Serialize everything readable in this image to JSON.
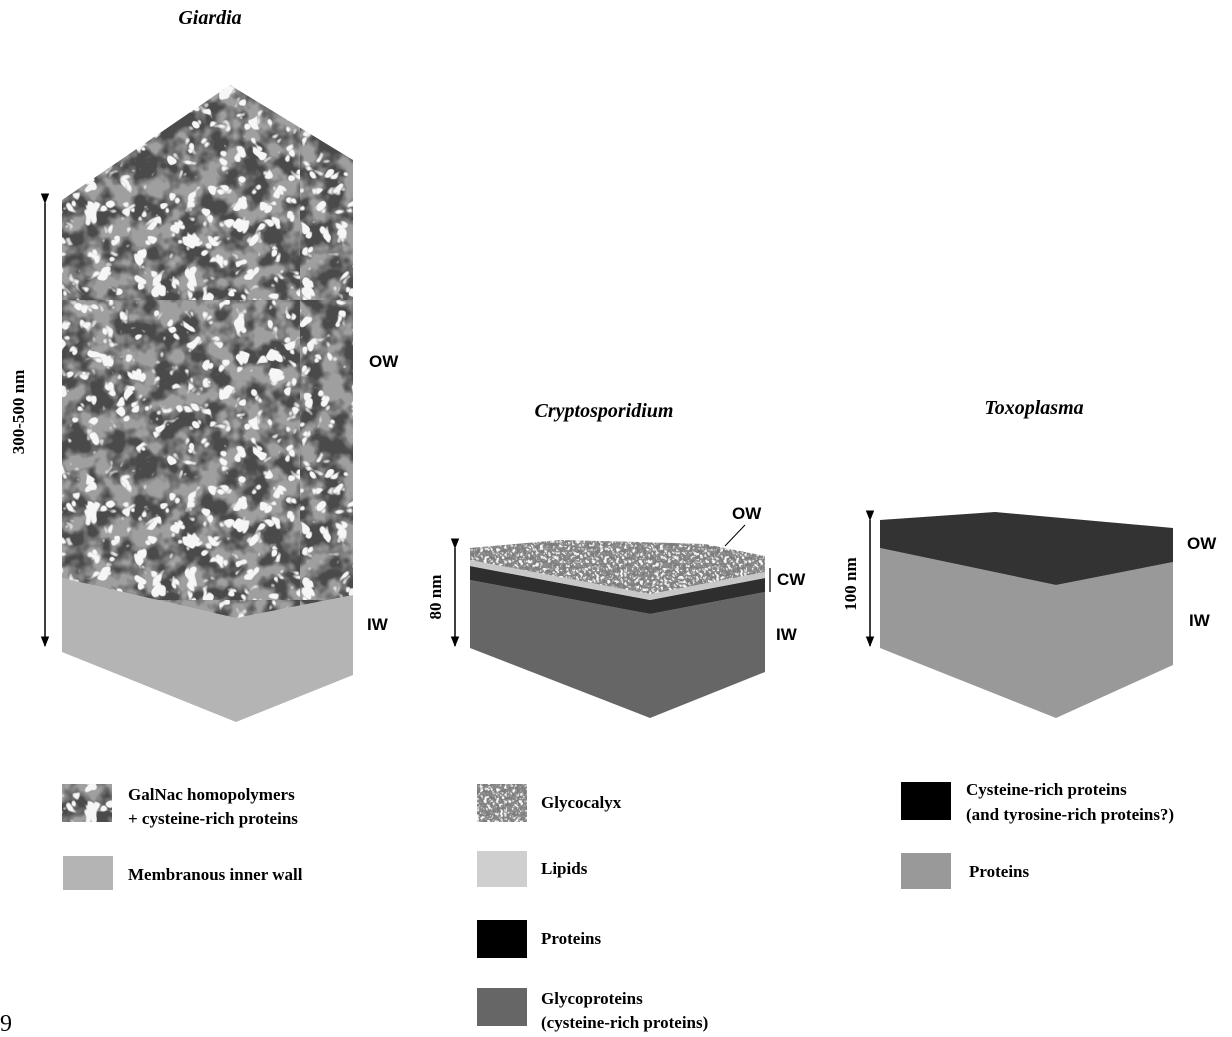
{
  "panels": {
    "giardia": {
      "title": "Giardia",
      "dimension": "300-500 nm",
      "ow_label": "OW",
      "iw_label": "IW",
      "legend": [
        {
          "lines": [
            "GalNac homopolymers",
            "+ cysteine-rich proteins"
          ],
          "swatch": "texture-dark"
        },
        {
          "lines": [
            "Membranous inner wall"
          ],
          "swatch": "#b4b4b4"
        }
      ]
    },
    "cryptosporidium": {
      "title": "Cryptosporidium",
      "dimension": "80 nm",
      "ow_label": "OW",
      "cw_label": "CW",
      "iw_label": "IW",
      "legend": [
        {
          "lines": [
            "Glycocalyx"
          ],
          "swatch": "texture-light"
        },
        {
          "lines": [
            "Lipids"
          ],
          "swatch": "#cfcfcf"
        },
        {
          "lines": [
            "Proteins"
          ],
          "swatch": "#000000"
        },
        {
          "lines": [
            "Glycoproteins",
            "(cysteine-rich proteins)"
          ],
          "swatch": "#666666"
        }
      ]
    },
    "toxoplasma": {
      "title": "Toxoplasma",
      "dimension": "100 nm",
      "ow_label": "OW",
      "iw_label": "IW",
      "legend": [
        {
          "lines": [
            "Cysteine-rich proteins",
            "(and tyrosine-rich proteins?)"
          ],
          "swatch": "#000000"
        },
        {
          "lines": [
            "Proteins"
          ],
          "swatch": "#999999"
        }
      ]
    }
  },
  "page_number": "9",
  "colors": {
    "giardia_inner": "#b4b4b4",
    "crypto_lipid": "#c8c8c8",
    "crypto_protein": "#2e2e2e",
    "crypto_glyco": "#666666",
    "toxo_outer": "#333333",
    "toxo_inner": "#999999"
  }
}
